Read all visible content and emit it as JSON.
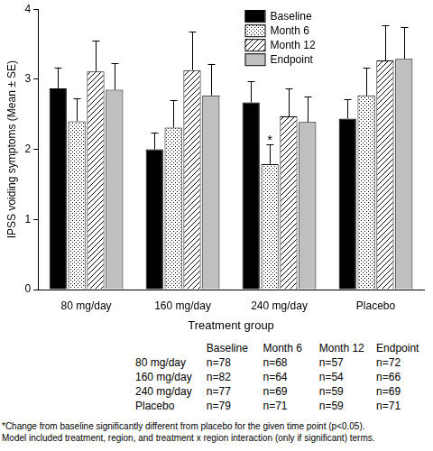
{
  "chart_data": {
    "type": "bar",
    "x_label": "Treatment group",
    "y_label": "IPSS voiding symptoms (Mean ± SE)",
    "categories": [
      "80 mg/day",
      "160 mg/day",
      "240 mg/day",
      "Placebo"
    ],
    "series": [
      {
        "name": "Baseline",
        "color": "#000000",
        "values": [
          2.87,
          2.0,
          2.67,
          2.44
        ],
        "errors": [
          0.3,
          0.24,
          0.3,
          0.27
        ]
      },
      {
        "name": "Month 6",
        "color": "#ffffff",
        "values": [
          2.4,
          2.31,
          1.79,
          2.77
        ],
        "errors": [
          0.33,
          0.39,
          0.28,
          0.39
        ]
      },
      {
        "name": "Month 12",
        "color": "#ffffff",
        "values": [
          3.11,
          3.13,
          2.47,
          3.27
        ],
        "errors": [
          0.44,
          0.55,
          0.4,
          0.5
        ]
      },
      {
        "name": "Endpoint",
        "color": "#bfbfbf",
        "values": [
          2.85,
          2.77,
          2.39,
          3.29
        ],
        "errors": [
          0.38,
          0.45,
          0.36,
          0.45
        ]
      }
    ],
    "ylim": [
      0,
      4
    ],
    "yticks": [
      0,
      1,
      2,
      3,
      4
    ],
    "grid": false,
    "legend": "top-right",
    "annotations": [
      {
        "text": "*",
        "category": "240 mg/day",
        "series": "Month 6"
      }
    ]
  },
  "table": {
    "columns": [
      "",
      "Baseline",
      "Month 6",
      "Month 12",
      "Endpoint"
    ],
    "rows": [
      [
        "80 mg/day",
        "n=78",
        "n=68",
        "n=57",
        "n=72"
      ],
      [
        "160 mg/day",
        "n=82",
        "n=64",
        "n=54",
        "n=66"
      ],
      [
        "240 mg/day",
        "n=77",
        "n=69",
        "n=59",
        "n=69"
      ],
      [
        "Placebo",
        "n=79",
        "n=71",
        "n=59",
        "n=71"
      ]
    ]
  },
  "footnote": [
    "*Change from baseline significantly different from placebo for the given time point (p<0.05).",
    "Model included treatment, region, and treatment x region interaction (only if significant) terms."
  ]
}
